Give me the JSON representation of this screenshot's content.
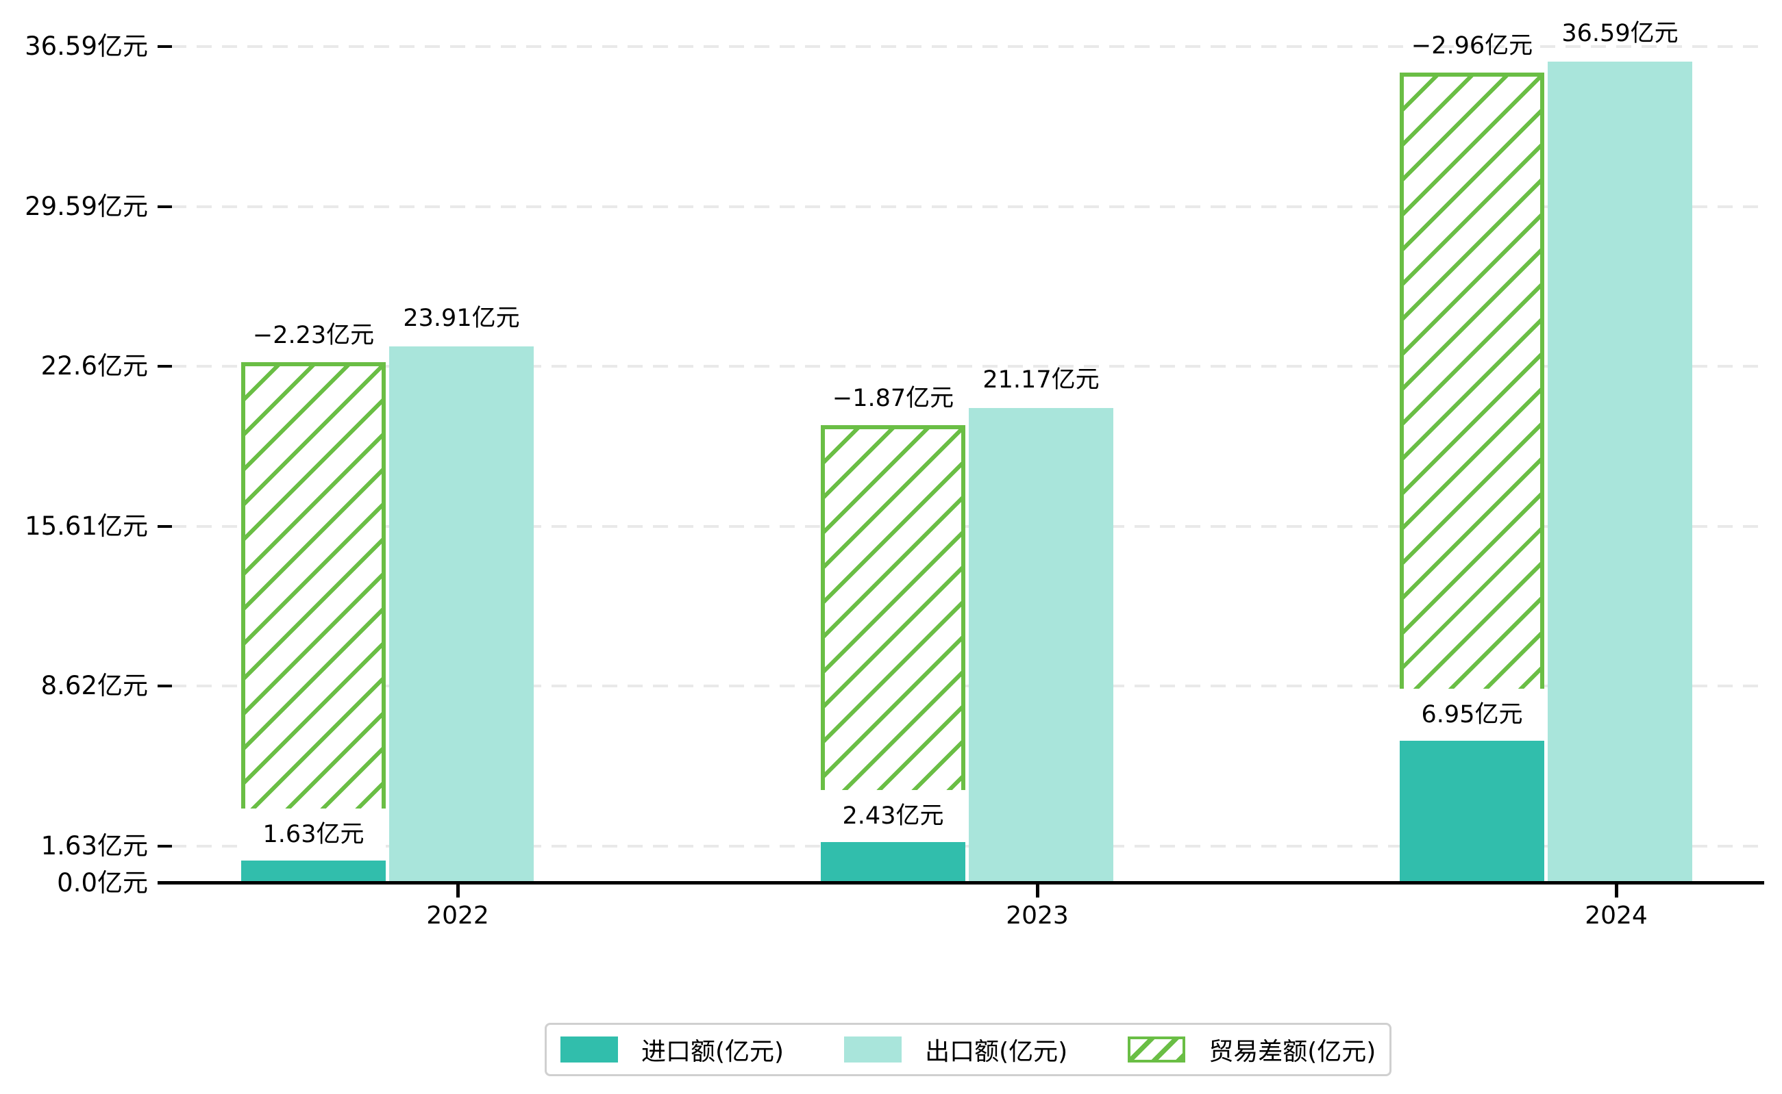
{
  "chart_data": {
    "type": "bar",
    "title": "",
    "categories": [
      "2022",
      "2023",
      "2024"
    ],
    "series": [
      {
        "name": "进口额(亿元)",
        "role": "import",
        "color": "#31beac",
        "values": [
          1.63,
          2.43,
          6.95
        ],
        "value_labels": [
          "1.63亿元",
          "2.43亿元",
          "6.95亿元"
        ]
      },
      {
        "name": "出口额(亿元)",
        "role": "export",
        "color": "#a9e5db",
        "values": [
          23.91,
          21.17,
          36.59
        ],
        "value_labels": [
          "23.91亿元",
          "21.17亿元",
          "36.59亿元"
        ]
      },
      {
        "name": "贸易差额(亿元)",
        "role": "trade-diff",
        "style": "hatched",
        "color": "#6abe45",
        "values": [
          -2.23,
          -1.87,
          -2.96
        ],
        "value_labels": [
          "−2.23亿元",
          "−1.87亿元",
          "−2.96亿元"
        ],
        "bar_bottom_values": [
          1.63,
          2.43,
          6.95
        ],
        "bar_top_values": [
          23.2,
          20.4,
          36.1
        ]
      }
    ],
    "y_axis": {
      "tick_labels": [
        "0.0亿元",
        "1.63亿元",
        "8.62亿元",
        "15.61亿元",
        "22.6亿元",
        "29.59亿元",
        "36.59亿元"
      ],
      "tick_values": [
        0,
        1.63,
        8.62,
        15.61,
        22.6,
        29.59,
        36.59
      ],
      "grid": "dashed",
      "ylim": [
        0,
        38
      ]
    },
    "x_axis": {
      "tick_labels": [
        "2022",
        "2023",
        "2024"
      ]
    },
    "legend": {
      "position": "bottom",
      "entries": [
        "进口额(亿元)",
        "出口额(亿元)",
        "贸易差额(亿元)"
      ]
    }
  },
  "colors": {
    "import_bar": "#31beac",
    "export_bar": "#a9e5db",
    "diff_hatch": "#6abe45",
    "gridline": "#e9e9e9",
    "axis": "#000000",
    "background": "#ffffff"
  }
}
